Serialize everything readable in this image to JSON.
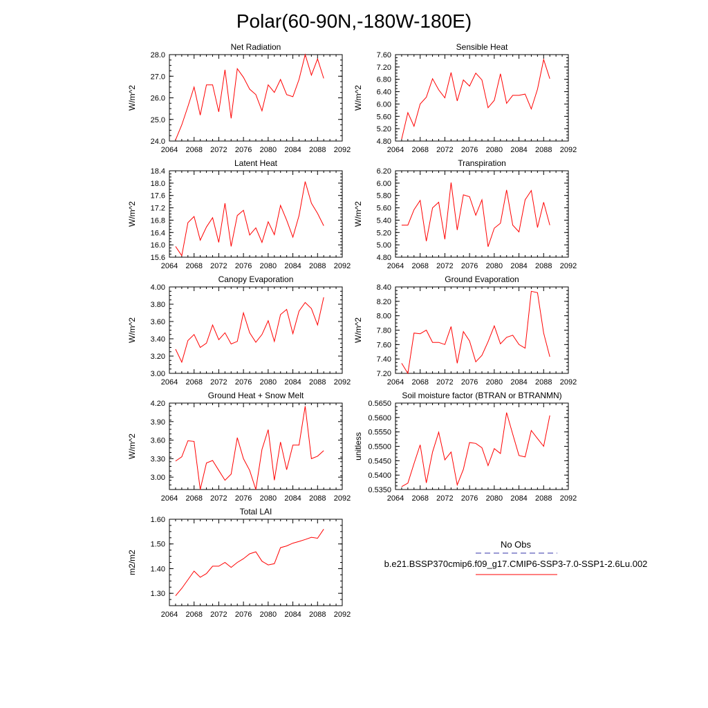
{
  "figure_title": "Polar(60-90N,-180W-180E)",
  "legend": {
    "entries": [
      {
        "label": "No Obs",
        "color": "#3333aa",
        "style": "dashed"
      },
      {
        "label": "b.e21.BSSP370cmip6.f09_g17.CMIP6-SSP3-7.0-SSP1-2.6Lu.002",
        "color": "#ff0000",
        "style": "solid"
      }
    ]
  },
  "chart_data": [
    {
      "type": "line",
      "title": "Net Radiation",
      "ylabel": "W/m^2",
      "xlim": [
        2064,
        2092
      ],
      "ylim": [
        24.0,
        28.0
      ],
      "xticks": [
        "2064",
        "2068",
        "2072",
        "2076",
        "2080",
        "2084",
        "2088",
        "2092"
      ],
      "yticks": [
        "24.0",
        "25.0",
        "26.0",
        "27.0",
        "28.0"
      ],
      "series": [
        {
          "color": "#ff0000",
          "x": [
            2065,
            2066,
            2067,
            2068,
            2069,
            2070,
            2071,
            2072,
            2073,
            2074,
            2075,
            2076,
            2077,
            2078,
            2079,
            2080,
            2081,
            2082,
            2083,
            2084,
            2085,
            2086,
            2087,
            2088,
            2089
          ],
          "values": [
            24.05,
            24.75,
            25.6,
            26.5,
            25.2,
            26.6,
            26.6,
            25.35,
            27.3,
            25.05,
            27.35,
            26.95,
            26.4,
            26.15,
            25.4,
            26.6,
            26.25,
            26.85,
            26.15,
            26.05,
            26.85,
            28.0,
            27.05,
            27.8,
            26.9
          ]
        }
      ]
    },
    {
      "type": "line",
      "title": "Sensible Heat",
      "ylabel": "W/m^2",
      "xlim": [
        2064,
        2092
      ],
      "ylim": [
        4.8,
        7.6
      ],
      "xticks": [
        "2064",
        "2068",
        "2072",
        "2076",
        "2080",
        "2084",
        "2088",
        "2092"
      ],
      "yticks": [
        "4.80",
        "5.20",
        "5.60",
        "6.00",
        "6.40",
        "6.80",
        "7.20",
        "7.60"
      ],
      "series": [
        {
          "color": "#ff0000",
          "x": [
            2065,
            2066,
            2067,
            2068,
            2069,
            2070,
            2071,
            2072,
            2073,
            2074,
            2075,
            2076,
            2077,
            2078,
            2079,
            2080,
            2081,
            2082,
            2083,
            2084,
            2085,
            2086,
            2087,
            2088,
            2089
          ],
          "values": [
            4.86,
            5.72,
            5.28,
            6.0,
            6.22,
            6.82,
            6.46,
            6.2,
            7.02,
            6.1,
            6.78,
            6.58,
            7.0,
            6.78,
            5.88,
            6.12,
            6.98,
            6.02,
            6.28,
            6.28,
            6.32,
            5.84,
            6.48,
            7.44,
            6.82
          ]
        }
      ]
    },
    {
      "type": "line",
      "title": "Latent Heat",
      "ylabel": "W/m^2",
      "xlim": [
        2064,
        2092
      ],
      "ylim": [
        15.6,
        18.4
      ],
      "xticks": [
        "2064",
        "2068",
        "2072",
        "2076",
        "2080",
        "2084",
        "2088",
        "2092"
      ],
      "yticks": [
        "15.6",
        "16.0",
        "16.4",
        "16.8",
        "17.2",
        "17.6",
        "18.0",
        "18.4"
      ],
      "series": [
        {
          "color": "#ff0000",
          "x": [
            2065,
            2066,
            2067,
            2068,
            2069,
            2070,
            2071,
            2072,
            2073,
            2074,
            2075,
            2076,
            2077,
            2078,
            2079,
            2080,
            2081,
            2082,
            2083,
            2084,
            2085,
            2086,
            2087,
            2088,
            2089
          ],
          "values": [
            15.95,
            15.65,
            16.72,
            16.92,
            16.15,
            16.58,
            16.88,
            16.08,
            17.35,
            15.95,
            16.95,
            17.12,
            16.32,
            16.55,
            16.08,
            16.75,
            16.33,
            17.28,
            16.8,
            16.25,
            16.95,
            18.05,
            17.35,
            17.02,
            16.62
          ]
        }
      ]
    },
    {
      "type": "line",
      "title": "Transpiration",
      "ylabel": "W/m^2",
      "xlim": [
        2064,
        2092
      ],
      "ylim": [
        4.8,
        6.2
      ],
      "xticks": [
        "2064",
        "2068",
        "2072",
        "2076",
        "2080",
        "2084",
        "2088",
        "2092"
      ],
      "yticks": [
        "4.80",
        "5.00",
        "5.20",
        "5.40",
        "5.60",
        "5.80",
        "6.00",
        "6.20"
      ],
      "series": [
        {
          "color": "#ff0000",
          "x": [
            2065,
            2066,
            2067,
            2068,
            2069,
            2070,
            2071,
            2072,
            2073,
            2074,
            2075,
            2076,
            2077,
            2078,
            2079,
            2080,
            2081,
            2082,
            2083,
            2084,
            2085,
            2086,
            2087,
            2088,
            2089
          ],
          "values": [
            5.32,
            5.32,
            5.57,
            5.72,
            5.06,
            5.6,
            5.69,
            5.09,
            6.01,
            5.24,
            5.81,
            5.78,
            5.48,
            5.73,
            4.97,
            5.27,
            5.35,
            5.89,
            5.32,
            5.21,
            5.73,
            5.88,
            5.28,
            5.69,
            5.32
          ]
        }
      ]
    },
    {
      "type": "line",
      "title": "Canopy Evaporation",
      "ylabel": "W/m^2",
      "xlim": [
        2064,
        2092
      ],
      "ylim": [
        3.0,
        4.0
      ],
      "xticks": [
        "2064",
        "2068",
        "2072",
        "2076",
        "2080",
        "2084",
        "2088",
        "2092"
      ],
      "yticks": [
        "3.00",
        "3.20",
        "3.40",
        "3.60",
        "3.80",
        "4.00"
      ],
      "series": [
        {
          "color": "#ff0000",
          "x": [
            2065,
            2066,
            2067,
            2068,
            2069,
            2070,
            2071,
            2072,
            2073,
            2074,
            2075,
            2076,
            2077,
            2078,
            2079,
            2080,
            2081,
            2082,
            2083,
            2084,
            2085,
            2086,
            2087,
            2088,
            2089
          ],
          "values": [
            3.28,
            3.13,
            3.38,
            3.45,
            3.3,
            3.35,
            3.56,
            3.39,
            3.47,
            3.34,
            3.37,
            3.7,
            3.47,
            3.36,
            3.45,
            3.61,
            3.37,
            3.68,
            3.74,
            3.46,
            3.72,
            3.82,
            3.75,
            3.56,
            3.88
          ]
        }
      ]
    },
    {
      "type": "line",
      "title": "Ground Evaporation",
      "ylabel": "W/m^2",
      "xlim": [
        2064,
        2092
      ],
      "ylim": [
        7.2,
        8.4
      ],
      "xticks": [
        "2064",
        "2068",
        "2072",
        "2076",
        "2080",
        "2084",
        "2088",
        "2092"
      ],
      "yticks": [
        "7.20",
        "7.40",
        "7.60",
        "7.80",
        "8.00",
        "8.20",
        "8.40"
      ],
      "series": [
        {
          "color": "#ff0000",
          "x": [
            2065,
            2066,
            2067,
            2068,
            2069,
            2070,
            2071,
            2072,
            2073,
            2074,
            2075,
            2076,
            2077,
            2078,
            2079,
            2080,
            2081,
            2082,
            2083,
            2084,
            2085,
            2086,
            2087,
            2088,
            2089
          ],
          "values": [
            7.34,
            7.2,
            7.76,
            7.75,
            7.8,
            7.63,
            7.63,
            7.6,
            7.85,
            7.34,
            7.78,
            7.65,
            7.36,
            7.45,
            7.64,
            7.86,
            7.61,
            7.7,
            7.73,
            7.6,
            7.55,
            8.34,
            8.32,
            7.76,
            7.43
          ]
        }
      ]
    },
    {
      "type": "line",
      "title": "Ground Heat + Snow Melt",
      "ylabel": "W/m^2",
      "xlim": [
        2064,
        2092
      ],
      "ylim": [
        2.8,
        4.2
      ],
      "xticks": [
        "2064",
        "2068",
        "2072",
        "2076",
        "2080",
        "2084",
        "2088",
        "2092"
      ],
      "yticks": [
        "3.00",
        "3.30",
        "3.60",
        "3.90",
        "4.20"
      ],
      "series": [
        {
          "color": "#ff0000",
          "x": [
            2065,
            2066,
            2067,
            2068,
            2069,
            2070,
            2071,
            2072,
            2073,
            2074,
            2075,
            2076,
            2077,
            2078,
            2079,
            2080,
            2081,
            2082,
            2083,
            2084,
            2085,
            2086,
            2087,
            2088,
            2089
          ],
          "values": [
            3.26,
            3.33,
            3.59,
            3.58,
            2.8,
            3.23,
            3.27,
            3.11,
            2.95,
            3.05,
            3.64,
            3.3,
            3.11,
            2.8,
            3.45,
            3.77,
            2.95,
            3.57,
            3.12,
            3.52,
            3.52,
            4.15,
            3.3,
            3.34,
            3.43
          ]
        }
      ]
    },
    {
      "type": "line",
      "title": "Soil moisture factor (BTRAN or BTRANMN)",
      "ylabel": "unitless",
      "xlim": [
        2064,
        2092
      ],
      "ylim": [
        0.535,
        0.565
      ],
      "xticks": [
        "2064",
        "2068",
        "2072",
        "2076",
        "2080",
        "2084",
        "2088",
        "2092"
      ],
      "yticks": [
        "0.5350",
        "0.5400",
        "0.5450",
        "0.5500",
        "0.5550",
        "0.5600",
        "0.5650"
      ],
      "series": [
        {
          "color": "#ff0000",
          "x": [
            2065,
            2066,
            2067,
            2068,
            2069,
            2070,
            2071,
            2072,
            2073,
            2074,
            2075,
            2076,
            2077,
            2078,
            2079,
            2080,
            2081,
            2082,
            2083,
            2084,
            2085,
            2086,
            2087,
            2088,
            2089
          ],
          "values": [
            0.536,
            0.5372,
            0.544,
            0.5505,
            0.5373,
            0.548,
            0.5549,
            0.5453,
            0.548,
            0.5366,
            0.542,
            0.5513,
            0.551,
            0.5495,
            0.5433,
            0.5492,
            0.5475,
            0.5617,
            0.5542,
            0.5468,
            0.5463,
            0.5555,
            0.5527,
            0.55,
            0.5607
          ]
        }
      ]
    },
    {
      "type": "line",
      "title": "Total LAI",
      "ylabel": "m2/m2",
      "xlim": [
        2064,
        2092
      ],
      "ylim": [
        1.25,
        1.6
      ],
      "xticks": [
        "2064",
        "2068",
        "2072",
        "2076",
        "2080",
        "2084",
        "2088",
        "2092"
      ],
      "yticks": [
        "1.30",
        "1.40",
        "1.50",
        "1.60"
      ],
      "series": [
        {
          "color": "#ff0000",
          "x": [
            2065,
            2066,
            2067,
            2068,
            2069,
            2070,
            2071,
            2072,
            2073,
            2074,
            2075,
            2076,
            2077,
            2078,
            2079,
            2080,
            2081,
            2082,
            2083,
            2084,
            2085,
            2086,
            2087,
            2088,
            2089
          ],
          "values": [
            1.29,
            1.32,
            1.355,
            1.39,
            1.365,
            1.38,
            1.41,
            1.41,
            1.425,
            1.405,
            1.425,
            1.44,
            1.46,
            1.468,
            1.43,
            1.415,
            1.42,
            1.485,
            1.492,
            1.503,
            1.51,
            1.518,
            1.527,
            1.523,
            1.56
          ]
        }
      ]
    }
  ]
}
